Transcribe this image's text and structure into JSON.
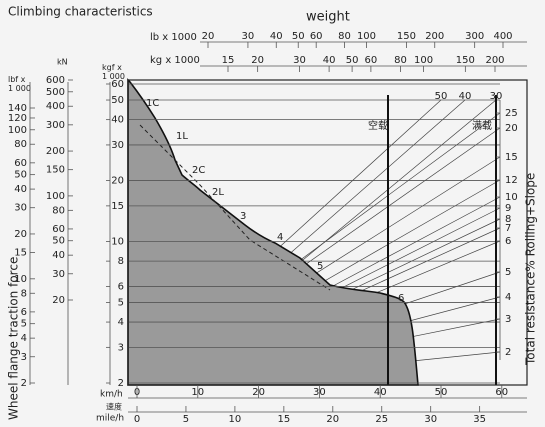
{
  "title": "Climbing characteristics",
  "weight_label": "weight",
  "lb_axis": {
    "unit": "lb x 1000",
    "ticks": [
      20,
      30,
      40,
      50,
      60,
      80,
      100,
      150,
      200,
      300,
      400
    ]
  },
  "kg_axis": {
    "unit": "kg x 1000",
    "ticks": [
      15,
      20,
      30,
      40,
      50,
      60,
      80,
      100,
      150,
      200
    ]
  },
  "lbf_axis": {
    "unit": "lbf x\n1 000",
    "ticks": [
      140,
      120,
      100,
      80,
      60,
      50,
      40,
      30,
      20,
      15,
      10,
      8,
      6,
      5,
      4,
      3,
      2
    ]
  },
  "kn_axis": {
    "unit": "kN",
    "ticks": [
      600,
      500,
      400,
      300,
      200,
      150,
      100,
      80,
      60,
      50,
      40,
      30,
      20
    ]
  },
  "kgf_axis": {
    "unit": "kgf x\n1 000",
    "ticks": [
      60,
      50,
      40,
      30,
      20,
      15,
      10,
      8,
      6,
      5,
      4,
      3,
      2
    ]
  },
  "kmh_axis": {
    "unit": "km/h",
    "ticks": [
      0,
      10,
      20,
      30,
      40,
      50,
      60
    ]
  },
  "speed_label": "速度",
  "mph_axis": {
    "unit": "mile/h",
    "ticks": [
      0,
      5,
      10,
      15,
      20,
      25,
      30,
      35
    ]
  },
  "resistance_axis": {
    "label": "Total resistance% Rolling+Slope",
    "ticks": [
      25,
      20,
      15,
      12,
      10,
      9,
      8,
      7,
      6,
      5,
      4,
      3,
      2
    ]
  },
  "top_resistance_labels": [
    50,
    40,
    30
  ],
  "gears": [
    "1C",
    "1L",
    "2C",
    "2L",
    "3",
    "4",
    "5",
    "6"
  ],
  "empty_label": "空载",
  "loaded_label": "满载",
  "y_label": "Wheel flange traction force"
}
